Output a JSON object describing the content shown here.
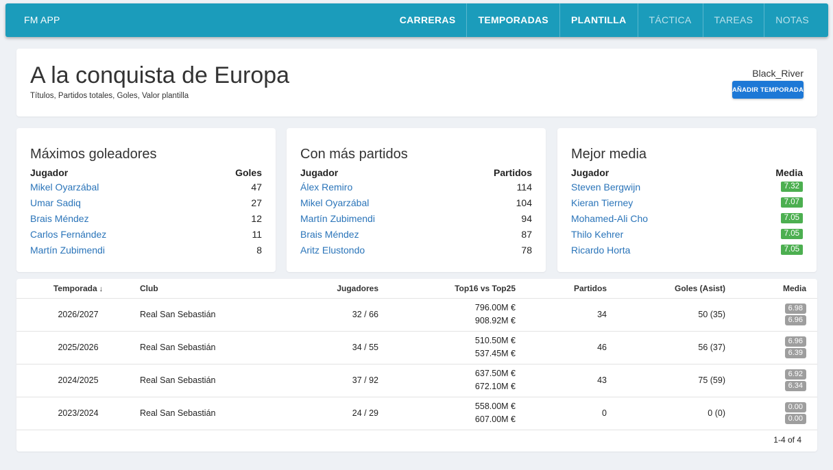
{
  "app": {
    "brand": "FM APP"
  },
  "nav": [
    {
      "label": "CARRERAS",
      "active": true
    },
    {
      "label": "TEMPORADAS",
      "active": true
    },
    {
      "label": "PLANTILLA",
      "active": true
    },
    {
      "label": "TÁCTICA",
      "active": false
    },
    {
      "label": "TAREAS",
      "active": false
    },
    {
      "label": "NOTAS",
      "active": false
    }
  ],
  "header": {
    "title": "A la conquista de Europa",
    "subtitle": "Títulos, Partidos totales, Goles, Valor plantilla",
    "username": "Black_River",
    "add_button": "AÑADIR TEMPORADA"
  },
  "scorers": {
    "title": "Máximos goleadores",
    "col_player": "Jugador",
    "col_value": "Goles",
    "rows": [
      {
        "name": "Mikel Oyarzábal",
        "value": "47"
      },
      {
        "name": "Umar Sadiq",
        "value": "27"
      },
      {
        "name": "Brais Méndez",
        "value": "12"
      },
      {
        "name": "Carlos Fernández",
        "value": "11"
      },
      {
        "name": "Martín Zubimendi",
        "value": "8"
      }
    ]
  },
  "matches": {
    "title": "Con más partidos",
    "col_player": "Jugador",
    "col_value": "Partidos",
    "rows": [
      {
        "name": "Álex Remiro",
        "value": "114"
      },
      {
        "name": "Mikel Oyarzábal",
        "value": "104"
      },
      {
        "name": "Martín Zubimendi",
        "value": "94"
      },
      {
        "name": "Brais Méndez",
        "value": "87"
      },
      {
        "name": "Aritz Elustondo",
        "value": "78"
      }
    ]
  },
  "ratings": {
    "title": "Mejor media",
    "col_player": "Jugador",
    "col_value": "Media",
    "rows": [
      {
        "name": "Steven Bergwijn",
        "value": "7.32"
      },
      {
        "name": "Kieran Tierney",
        "value": "7.07"
      },
      {
        "name": "Mohamed-Ali Cho",
        "value": "7.05"
      },
      {
        "name": "Thilo Kehrer",
        "value": "7.05"
      },
      {
        "name": "Ricardo Horta",
        "value": "7.05"
      }
    ]
  },
  "seasons_table": {
    "headers": {
      "season": "Temporada",
      "club": "Club",
      "players": "Jugadores",
      "top": "Top16 vs Top25",
      "matches": "Partidos",
      "goals": "Goles (Asist)",
      "media": "Media"
    },
    "sort_arrow": "↓",
    "rows": [
      {
        "season": "2026/2027",
        "club": "Real San Sebastián",
        "players": "32 / 66",
        "top16": "796.00M €",
        "top25": "908.92M €",
        "matches": "34",
        "goals": "50 (35)",
        "media1": "6.98",
        "media2": "6.96"
      },
      {
        "season": "2025/2026",
        "club": "Real San Sebastián",
        "players": "34 / 55",
        "top16": "510.50M €",
        "top25": "537.45M €",
        "matches": "46",
        "goals": "56 (37)",
        "media1": "6.96",
        "media2": "6.39"
      },
      {
        "season": "2024/2025",
        "club": "Real San Sebastián",
        "players": "37 / 92",
        "top16": "637.50M €",
        "top25": "672.10M €",
        "matches": "43",
        "goals": "75 (59)",
        "media1": "6.92",
        "media2": "6.34"
      },
      {
        "season": "2023/2024",
        "club": "Real San Sebastián",
        "players": "24 / 29",
        "top16": "558.00M €",
        "top25": "607.00M €",
        "matches": "0",
        "goals": "0 (0)",
        "media1": "0.00",
        "media2": "0.00"
      }
    ],
    "pagination": "1-4 of 4"
  },
  "colors": {
    "navbar": "#1b9cbb",
    "button": "#1d78d6",
    "link": "#2a74b9",
    "badge_green": "#4caf50",
    "badge_grey": "#9e9e9e"
  }
}
